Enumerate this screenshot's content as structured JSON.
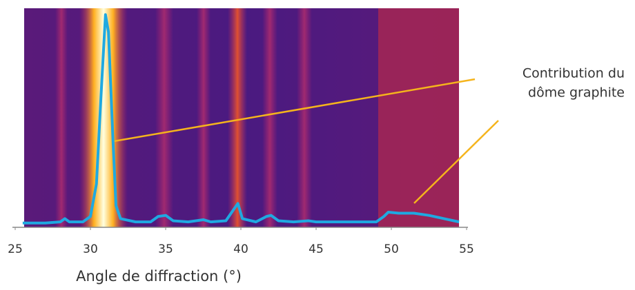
{
  "chart_data": {
    "type": "line",
    "x_label": "Angle de diffraction (°)",
    "annotation": [
      "Contribution du",
      "dôme graphite"
    ],
    "x": [
      25.5,
      26,
      27,
      28,
      28.3,
      28.6,
      29.5,
      30,
      30.4,
      30.7,
      31,
      31.2,
      31.5,
      31.7,
      32,
      33,
      34,
      34.5,
      35,
      35.5,
      36.5,
      37.5,
      38,
      39,
      39.6,
      39.8,
      40.1,
      41,
      41.7,
      42,
      42.5,
      43.5,
      44.5,
      45,
      46,
      47,
      48,
      49,
      49.5,
      49.8,
      50.5,
      51.5,
      52.5,
      53.5,
      54.5
    ],
    "series": [
      {
        "color": "#1fa9e1",
        "values": [
          2,
          2,
          2,
          2.5,
          4,
          2.5,
          2.5,
          5,
          20,
          60,
          98,
          90,
          40,
          10,
          4,
          2.5,
          2.5,
          5,
          5.5,
          3,
          2.5,
          3.5,
          2.5,
          3,
          9,
          11,
          4,
          2.5,
          5,
          5.5,
          3,
          2.5,
          3,
          2.5,
          2.5,
          2.5,
          2.5,
          2.5,
          5,
          7,
          6.5,
          6.5,
          5.5,
          4,
          2.5
        ]
      }
    ],
    "xlim": [
      25,
      55
    ],
    "xticks": [
      25,
      30,
      35,
      40,
      45,
      50,
      55
    ],
    "ylim": [
      0,
      100
    ],
    "annotation_color": "#f5b41c"
  }
}
